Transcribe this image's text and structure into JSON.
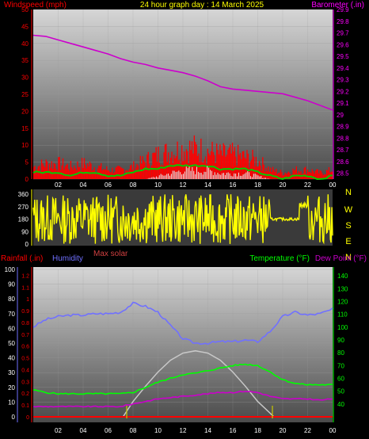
{
  "header": {
    "left_label": "Windspeed (mph)",
    "title": "24 hour graph day : 14 March 2025",
    "right_label": "Barometer (.in)"
  },
  "colors": {
    "windspeed": "#ff0000",
    "wind_avg": "#00cc00",
    "gust_white": "#e8e8e8",
    "barometer": "#cc00cc",
    "direction": "#ffff00",
    "rain": "#ff0000",
    "humidity": "#7070ff",
    "temperature": "#00ff00",
    "dewpoint": "#cc00cc",
    "solar": "#c8c8c8",
    "axis_left_top": "#ff0000",
    "axis_right_top": "#ff00ff",
    "axis_right_bottom": "#00ff00"
  },
  "chart_data": [
    {
      "type": "line",
      "name_id": "wind-barometer",
      "x_ticks": [
        "02",
        "04",
        "06",
        "08",
        "10",
        "12",
        "14",
        "16",
        "18",
        "20",
        "22",
        "00"
      ],
      "ylabel": "Windspeed (mph)",
      "ylim": [
        0,
        50
      ],
      "y_ticks": [
        "0",
        "5",
        "10",
        "15",
        "20",
        "25",
        "30",
        "35",
        "40",
        "45",
        "50"
      ],
      "y2label": "Barometer (.in)",
      "y2lim": [
        28.45,
        29.9
      ],
      "y2_ticks": [
        "28.5",
        "28.6",
        "28.7",
        "28.8",
        "28.9",
        "29",
        "29.1",
        "29.2",
        "29.3",
        "29.4",
        "29.5",
        "29.6",
        "29.7",
        "29.8",
        "29.9"
      ],
      "barometer": [
        {
          "x": 0,
          "y": 29.68
        },
        {
          "x": 1,
          "y": 29.67
        },
        {
          "x": 2,
          "y": 29.64
        },
        {
          "x": 3,
          "y": 29.61
        },
        {
          "x": 4,
          "y": 29.58
        },
        {
          "x": 5,
          "y": 29.55
        },
        {
          "x": 6,
          "y": 29.52
        },
        {
          "x": 7,
          "y": 29.48
        },
        {
          "x": 8,
          "y": 29.45
        },
        {
          "x": 9,
          "y": 29.43
        },
        {
          "x": 10,
          "y": 29.4
        },
        {
          "x": 11,
          "y": 29.38
        },
        {
          "x": 12,
          "y": 29.36
        },
        {
          "x": 13,
          "y": 29.33
        },
        {
          "x": 14,
          "y": 29.29
        },
        {
          "x": 15,
          "y": 29.24
        },
        {
          "x": 16,
          "y": 29.22
        },
        {
          "x": 17,
          "y": 29.21
        },
        {
          "x": 18,
          "y": 29.2
        },
        {
          "x": 19,
          "y": 29.19
        },
        {
          "x": 20,
          "y": 29.18
        },
        {
          "x": 21,
          "y": 29.15
        },
        {
          "x": 22,
          "y": 29.12
        },
        {
          "x": 23,
          "y": 29.08
        },
        {
          "x": 24,
          "y": 29.04
        }
      ],
      "wind_max": [
        4,
        5,
        5,
        4,
        5,
        4,
        3,
        3,
        4,
        6,
        8,
        9,
        10,
        10,
        9,
        8,
        8,
        7,
        6,
        3,
        2,
        3,
        3,
        2,
        3
      ],
      "wind_avg": [
        2,
        2,
        2,
        1,
        2,
        2,
        1,
        1,
        2,
        3,
        3,
        4,
        4,
        4,
        4,
        3,
        3,
        3,
        2,
        1,
        0,
        1,
        1,
        0,
        1
      ],
      "gust_avg": [
        0,
        0,
        0,
        0,
        0,
        0,
        0,
        0,
        0,
        0,
        1,
        2,
        3,
        3,
        3,
        2,
        2,
        2,
        1,
        0,
        0,
        0,
        0,
        0,
        0
      ]
    },
    {
      "type": "scatter",
      "name_id": "wind-direction",
      "y_ticks": [
        "0",
        "90",
        "180",
        "270",
        "360"
      ],
      "ylim": [
        0,
        360
      ],
      "compass": [
        "N",
        "W",
        "S",
        "E",
        "N"
      ]
    },
    {
      "type": "line",
      "name_id": "rain-humidity-temp",
      "labels": {
        "rainfall": "Rainfall (.in)",
        "humidity": "Humidity",
        "max_solar": "Max solar",
        "temperature": "Temperature (°F)",
        "dewpoint": "Dew Point (°F)"
      },
      "x_ticks": [
        "02",
        "04",
        "06",
        "08",
        "10",
        "12",
        "14",
        "16",
        "18",
        "20",
        "22",
        "00"
      ],
      "humidity_lim": [
        0,
        100
      ],
      "humidity_ticks": [
        "0",
        "10",
        "20",
        "30",
        "40",
        "50",
        "60",
        "70",
        "80",
        "90",
        "100"
      ],
      "rain_lim": [
        0,
        1.25
      ],
      "rain_ticks": [
        "0",
        "0.1",
        "0.2",
        "0.3",
        "0.4",
        "0.5",
        "0.6",
        "0.7",
        "0.8",
        "0.9",
        "1",
        "1.1",
        "1.2"
      ],
      "temp_lim": [
        30,
        145
      ],
      "temp_ticks": [
        "40",
        "50",
        "60",
        "70",
        "80",
        "90",
        "100",
        "110",
        "120",
        "130",
        "140"
      ],
      "humidity": [
        {
          "x": 0,
          "y": 61
        },
        {
          "x": 1,
          "y": 66
        },
        {
          "x": 2,
          "y": 68
        },
        {
          "x": 3,
          "y": 69
        },
        {
          "x": 4,
          "y": 69
        },
        {
          "x": 5,
          "y": 70
        },
        {
          "x": 6,
          "y": 70
        },
        {
          "x": 7,
          "y": 71
        },
        {
          "x": 8,
          "y": 77
        },
        {
          "x": 9,
          "y": 75
        },
        {
          "x": 10,
          "y": 71
        },
        {
          "x": 11,
          "y": 62
        },
        {
          "x": 12,
          "y": 53
        },
        {
          "x": 13,
          "y": 50
        },
        {
          "x": 14,
          "y": 50
        },
        {
          "x": 15,
          "y": 51
        },
        {
          "x": 16,
          "y": 51
        },
        {
          "x": 17,
          "y": 52
        },
        {
          "x": 18,
          "y": 51
        },
        {
          "x": 19,
          "y": 58
        },
        {
          "x": 20,
          "y": 68
        },
        {
          "x": 21,
          "y": 71
        },
        {
          "x": 22,
          "y": 69
        },
        {
          "x": 23,
          "y": 70
        },
        {
          "x": 24,
          "y": 73
        }
      ],
      "temperature": [
        {
          "x": 0,
          "y": 51
        },
        {
          "x": 1,
          "y": 49
        },
        {
          "x": 2,
          "y": 48
        },
        {
          "x": 3,
          "y": 48
        },
        {
          "x": 4,
          "y": 48
        },
        {
          "x": 5,
          "y": 48
        },
        {
          "x": 6,
          "y": 48
        },
        {
          "x": 7,
          "y": 48
        },
        {
          "x": 8,
          "y": 49
        },
        {
          "x": 9,
          "y": 53
        },
        {
          "x": 10,
          "y": 57
        },
        {
          "x": 11,
          "y": 60
        },
        {
          "x": 12,
          "y": 63
        },
        {
          "x": 13,
          "y": 64
        },
        {
          "x": 14,
          "y": 66
        },
        {
          "x": 15,
          "y": 68
        },
        {
          "x": 16,
          "y": 70
        },
        {
          "x": 17,
          "y": 71
        },
        {
          "x": 18,
          "y": 70
        },
        {
          "x": 19,
          "y": 65
        },
        {
          "x": 20,
          "y": 59
        },
        {
          "x": 21,
          "y": 56
        },
        {
          "x": 22,
          "y": 55
        },
        {
          "x": 23,
          "y": 55
        },
        {
          "x": 24,
          "y": 55
        }
      ],
      "dewpoint": [
        {
          "x": 0,
          "y": 38
        },
        {
          "x": 1,
          "y": 38
        },
        {
          "x": 2,
          "y": 38
        },
        {
          "x": 3,
          "y": 38
        },
        {
          "x": 4,
          "y": 38
        },
        {
          "x": 5,
          "y": 38
        },
        {
          "x": 6,
          "y": 38
        },
        {
          "x": 7,
          "y": 38
        },
        {
          "x": 8,
          "y": 40
        },
        {
          "x": 9,
          "y": 42
        },
        {
          "x": 10,
          "y": 44
        },
        {
          "x": 11,
          "y": 45
        },
        {
          "x": 12,
          "y": 46
        },
        {
          "x": 13,
          "y": 47
        },
        {
          "x": 14,
          "y": 48
        },
        {
          "x": 15,
          "y": 49
        },
        {
          "x": 16,
          "y": 49
        },
        {
          "x": 17,
          "y": 50
        },
        {
          "x": 18,
          "y": 49
        },
        {
          "x": 19,
          "y": 46
        },
        {
          "x": 20,
          "y": 44
        },
        {
          "x": 21,
          "y": 44
        },
        {
          "x": 22,
          "y": 44
        },
        {
          "x": 23,
          "y": 43
        },
        {
          "x": 24,
          "y": 44
        }
      ],
      "max_solar": [
        {
          "x": 7.2,
          "y": 0
        },
        {
          "x": 8,
          "y": 0.13
        },
        {
          "x": 9,
          "y": 0.26
        },
        {
          "x": 10,
          "y": 0.38
        },
        {
          "x": 11,
          "y": 0.48
        },
        {
          "x": 12,
          "y": 0.54
        },
        {
          "x": 13,
          "y": 0.56
        },
        {
          "x": 14,
          "y": 0.54
        },
        {
          "x": 15,
          "y": 0.48
        },
        {
          "x": 16,
          "y": 0.38
        },
        {
          "x": 17,
          "y": 0.26
        },
        {
          "x": 18,
          "y": 0.13
        },
        {
          "x": 19.3,
          "y": 0
        }
      ],
      "rainfall_total": 0
    }
  ]
}
